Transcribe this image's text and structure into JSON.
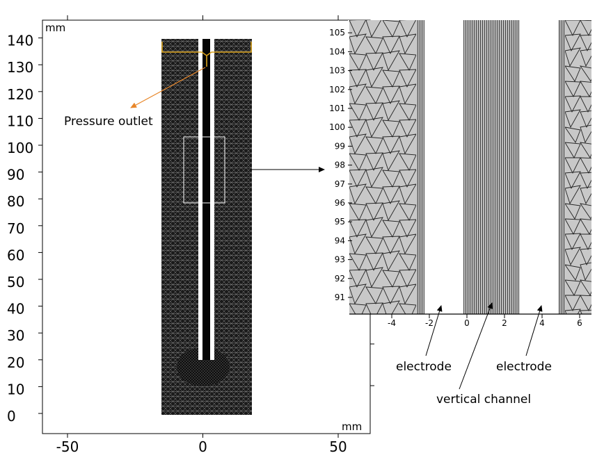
{
  "main_plot": {
    "unit_top": "mm",
    "unit_bottom": "mm",
    "y_ticks": [
      "0",
      "10",
      "20",
      "30",
      "40",
      "50",
      "60",
      "70",
      "80",
      "90",
      "100",
      "110",
      "120",
      "130",
      "140"
    ],
    "x_ticks": [
      "-50",
      "0",
      "50"
    ]
  },
  "zoom_plot": {
    "y_ticks": [
      "91",
      "92",
      "93",
      "94",
      "95",
      "96",
      "97",
      "98",
      "99",
      "100",
      "101",
      "102",
      "103",
      "104",
      "105"
    ],
    "x_ticks": [
      "-4",
      "-2",
      "0",
      "2",
      "4",
      "6"
    ]
  },
  "annotations": {
    "pressure_outlet": "Pressure outlet",
    "electrode_left": "electrode",
    "electrode_right": "electrode",
    "vertical_channel": "vertical channel"
  },
  "colors": {
    "mesh_dark": "#111111",
    "mesh_fill": "#c8c8c8",
    "outlet_line": "#d9a21b",
    "outlet_arrow": "#e8872a"
  }
}
